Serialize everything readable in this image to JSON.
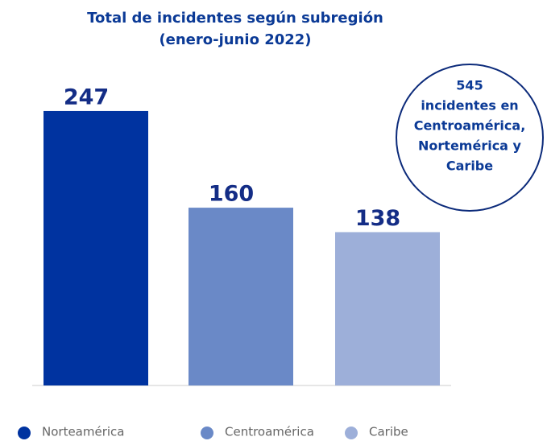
{
  "chart_data": {
    "type": "bar",
    "title": [
      "Total de incidentes según subregión",
      "(enero-junio 2022)"
    ],
    "categories": [
      "Norteamérica",
      "Centroamérica",
      "Caribe"
    ],
    "values": [
      247,
      160,
      138
    ],
    "colors": [
      "#0033a0",
      "#6a89c7",
      "#9dafd9"
    ],
    "ylim": [
      0,
      260
    ],
    "annotation": [
      "545",
      "incidentes en",
      "Centroamérica,",
      "Nortemérica y",
      "Caribe"
    ],
    "legend": "bottom"
  }
}
